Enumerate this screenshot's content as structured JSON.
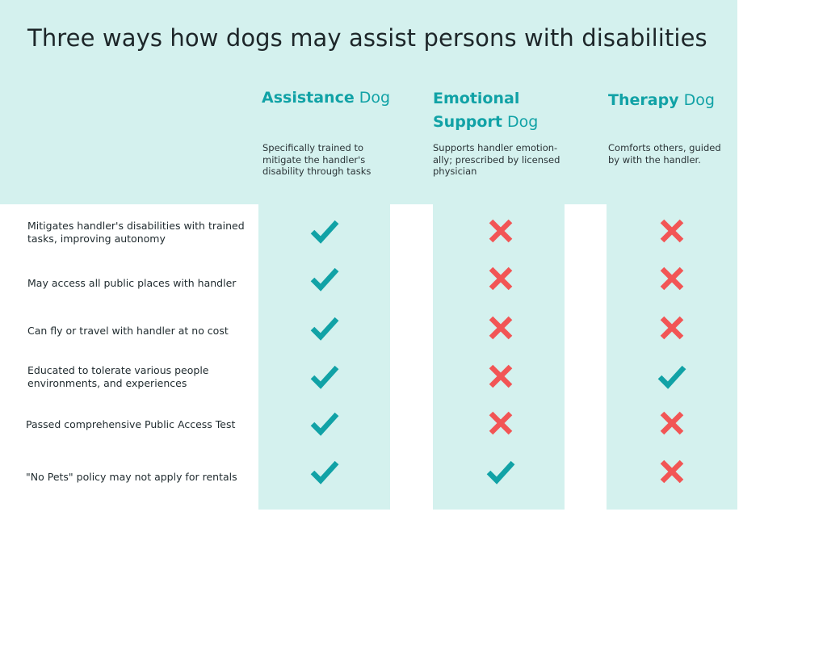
{
  "title": "Three ways how dogs may assist persons with disabilities",
  "columns": [
    {
      "name_bold": "Assistance",
      "name_light": "Dog",
      "description": "Specifically trained to mitigate the handler's disability through tasks"
    },
    {
      "name_bold": "Emotional Support",
      "name_light": "Dog",
      "description": "Supports handler emotion-ally; prescribed by licensed physician"
    },
    {
      "name_bold": "Therapy",
      "name_light": "Dog",
      "description": "Comforts others, guided by with the handler."
    }
  ],
  "rows": [
    {
      "label": "Mitigates handler's disabilities with trained tasks, improving autonomy",
      "values": [
        "check",
        "cross",
        "cross"
      ]
    },
    {
      "label": "May access all public places with handler",
      "values": [
        "check",
        "cross",
        "cross"
      ]
    },
    {
      "label": "Can fly or travel with handler at no cost",
      "values": [
        "check",
        "cross",
        "cross"
      ]
    },
    {
      "label": "Educated to tolerate various people environments, and experiences",
      "values": [
        "check",
        "cross",
        "check"
      ]
    },
    {
      "label": "Passed comprehensive Public Access Test",
      "values": [
        "check",
        "cross",
        "cross"
      ]
    },
    {
      "label": "\"No Pets\" policy may not apply for rentals",
      "values": [
        "check",
        "check",
        "cross"
      ]
    }
  ],
  "icons": {
    "check": "checkmark-icon",
    "cross": "x-mark-icon"
  },
  "colors": {
    "accent": "#11a2a6",
    "check": "#11a2a6",
    "cross": "#f25555",
    "panel": "#d4f1ee"
  }
}
